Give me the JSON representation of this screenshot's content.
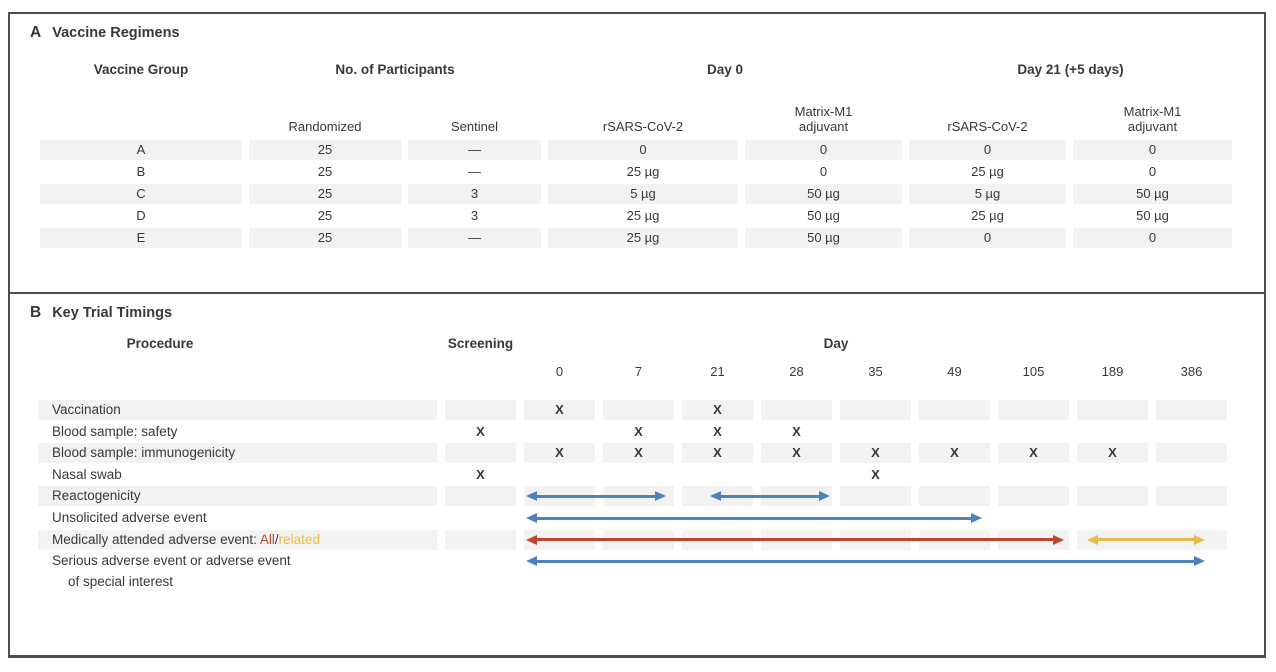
{
  "colors": {
    "blue": "#4f81bd",
    "red": "#c0432f",
    "yellow": "#e6bd4a",
    "stripe": "#f2f2f2",
    "text": "#37383a"
  },
  "panel_a": {
    "label": "A",
    "title": "Vaccine Regimens",
    "group_headers": [
      {
        "text": "Vaccine Group",
        "cols": 1
      },
      {
        "text": "No. of Participants",
        "cols": 2
      },
      {
        "text": "Day 0",
        "cols": 2
      },
      {
        "text": "Day 21 (+5 days)",
        "cols": 2
      }
    ],
    "sub_headers": [
      "",
      "Randomized",
      "Sentinel",
      "rSARS-CoV-2",
      "Matrix-M1\nadjuvant",
      "rSARS-CoV-2",
      "Matrix-M1\nadjuvant"
    ],
    "rows": [
      [
        "A",
        "25",
        "—",
        "0",
        "0",
        "0",
        "0"
      ],
      [
        "B",
        "25",
        "—",
        "25 µg",
        "0",
        "25 µg",
        "0"
      ],
      [
        "C",
        "25",
        "3",
        "5 µg",
        "50 µg",
        "5 µg",
        "50 µg"
      ],
      [
        "D",
        "25",
        "3",
        "25 µg",
        "50 µg",
        "25 µg",
        "50 µg"
      ],
      [
        "E",
        "25",
        "—",
        "25 µg",
        "50 µg",
        "0",
        "0"
      ]
    ]
  },
  "panel_b": {
    "label": "B",
    "title": "Key Trial Timings",
    "headers": {
      "procedure": "Procedure",
      "screening": "Screening",
      "day": "Day"
    },
    "columns": [
      "",
      "0",
      "7",
      "21",
      "28",
      "35",
      "49",
      "105",
      "189",
      "386"
    ],
    "mark_glyph": "X",
    "rows": [
      {
        "label": "Vaccination",
        "marks": [
          1,
          3
        ]
      },
      {
        "label": "Blood sample: safety",
        "marks": [
          0,
          2,
          3,
          4
        ]
      },
      {
        "label": "Blood sample: immunogenicity",
        "marks": [
          1,
          2,
          3,
          4,
          5,
          6,
          7,
          8
        ]
      },
      {
        "label": "Nasal swab",
        "marks": [
          0,
          5
        ]
      },
      {
        "label": "Reactogenicity",
        "arrows": [
          {
            "from": 1,
            "to": 2,
            "color": "blue",
            "inl": 2,
            "inr": 8
          },
          {
            "from": 3,
            "to": 4,
            "color": "blue",
            "inl": 28,
            "inr": 2
          }
        ]
      },
      {
        "label": "Unsolicited adverse event",
        "arrows": [
          {
            "from": 1,
            "to": 6,
            "color": "blue",
            "inl": 2,
            "inr": 8
          }
        ]
      },
      {
        "label_parts": [
          {
            "t": "Medically attended adverse event: "
          },
          {
            "t": "All",
            "c": "red"
          },
          {
            "t": "/"
          },
          {
            "t": "related",
            "c": "yellow"
          }
        ],
        "arrows": [
          {
            "from": 1,
            "to": 7,
            "color": "red",
            "inl": 2,
            "inr": 5
          },
          {
            "from": 8,
            "to": 9,
            "color": "yellow",
            "inl": 10,
            "inr": 22
          }
        ],
        "merge_band": [
          8,
          9
        ]
      },
      {
        "label": "Serious adverse event or adverse event",
        "label2": "of special interest",
        "arrows": [
          {
            "from": 1,
            "to": 9,
            "color": "blue",
            "inl": 2,
            "inr": 22
          }
        ]
      }
    ]
  }
}
